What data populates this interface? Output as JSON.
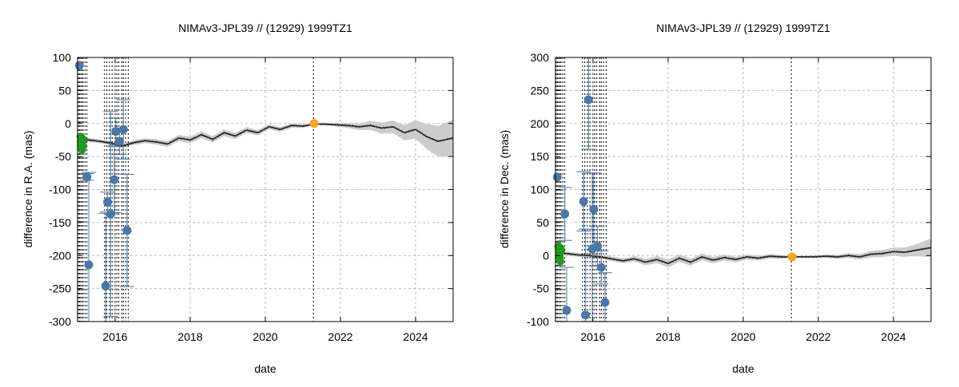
{
  "chart_data": [
    {
      "type": "scatter",
      "title": "NIMAv3-JPL39 // (12929) 1999TZ1",
      "xlabel": "date",
      "ylabel": "difference in R.A. (mas)",
      "xlim": [
        2015.0,
        2025.0
      ],
      "ylim": [
        -300,
        100
      ],
      "xticks": [
        2016,
        2018,
        2020,
        2022,
        2024
      ],
      "yticks": [
        -300,
        -250,
        -200,
        -150,
        -100,
        -50,
        0,
        50,
        100
      ],
      "grid": true,
      "colors": {
        "observations": "#4a78a8",
        "recent_obs": "#1f9a1f",
        "reference": "#f5a623",
        "model": "#222222",
        "uncertainty": "#cccccc"
      },
      "vertical_lines": [
        2015.02,
        2015.05,
        2015.08,
        2015.12,
        2015.15,
        2015.2,
        2015.25,
        2015.72,
        2015.78,
        2015.85,
        2015.92,
        2016.0,
        2016.05,
        2016.1,
        2016.18,
        2016.22,
        2016.28,
        2016.35,
        2021.28
      ],
      "model_line": {
        "x": [
          2015.0,
          2015.3,
          2015.6,
          2015.9,
          2016.2,
          2016.5,
          2016.8,
          2017.1,
          2017.4,
          2017.7,
          2018.0,
          2018.3,
          2018.6,
          2018.9,
          2019.2,
          2019.5,
          2019.8,
          2020.1,
          2020.4,
          2020.7,
          2021.0,
          2021.3,
          2021.6,
          2021.9,
          2022.2,
          2022.5,
          2022.8,
          2023.1,
          2023.4,
          2023.7,
          2024.0,
          2024.3,
          2024.6,
          2025.0
        ],
        "y": [
          -24,
          -25,
          -27,
          -30,
          -34,
          -29,
          -26,
          -28,
          -31,
          -22,
          -25,
          -17,
          -24,
          -14,
          -19,
          -10,
          -14,
          -5,
          -9,
          -3,
          -4,
          -1,
          -1,
          -2,
          -3,
          -5,
          -3,
          -7,
          -5,
          -14,
          -9,
          -20,
          -27,
          -22
        ]
      },
      "uncertainty_band": {
        "x": [
          2015.0,
          2016.0,
          2017.0,
          2018.0,
          2019.0,
          2020.0,
          2021.0,
          2021.3,
          2022.0,
          2022.5,
          2023.0,
          2023.5,
          2024.0,
          2024.5,
          2025.0
        ],
        "halfwidth": [
          3,
          3,
          4,
          5,
          5,
          4,
          3,
          1,
          3,
          5,
          8,
          10,
          14,
          22,
          28
        ]
      },
      "observations": [
        {
          "x": 2015.05,
          "y": 88,
          "err": 0
        },
        {
          "x": 2015.25,
          "y": -81,
          "err": 5
        },
        {
          "x": 2015.3,
          "y": -214,
          "err": 140
        },
        {
          "x": 2015.75,
          "y": -246,
          "err": 110
        },
        {
          "x": 2015.8,
          "y": -119,
          "err": 15
        },
        {
          "x": 2015.88,
          "y": -137,
          "err": 155
        },
        {
          "x": 2015.98,
          "y": -85,
          "err": 50
        },
        {
          "x": 2016.02,
          "y": -12,
          "err": 20
        },
        {
          "x": 2016.12,
          "y": -27,
          "err": 20
        },
        {
          "x": 2016.22,
          "y": -9,
          "err": 45
        },
        {
          "x": 2016.32,
          "y": -162,
          "err": 85
        }
      ],
      "recent_obs": {
        "x": [
          2015.08,
          2015.09,
          2015.1,
          2015.11,
          2015.12,
          2015.13,
          2015.14,
          2015.15
        ],
        "y": [
          -20,
          -26,
          -31,
          -36,
          -40,
          -23,
          -28,
          -34
        ]
      },
      "reference_point": {
        "x": 2021.3,
        "y": 0
      }
    },
    {
      "type": "scatter",
      "title": "NIMAv3-JPL39 // (12929) 1999TZ1",
      "xlabel": "date",
      "ylabel": "difference in Dec. (mas)",
      "xlim": [
        2015.0,
        2025.0
      ],
      "ylim": [
        -100,
        300
      ],
      "xticks": [
        2016,
        2018,
        2020,
        2022,
        2024
      ],
      "yticks": [
        -100,
        -50,
        0,
        50,
        100,
        150,
        200,
        250,
        300
      ],
      "grid": true,
      "colors": {
        "observations": "#4a78a8",
        "recent_obs": "#1f9a1f",
        "reference": "#f5a623",
        "model": "#222222",
        "uncertainty": "#cccccc"
      },
      "vertical_lines": [
        2015.02,
        2015.05,
        2015.08,
        2015.12,
        2015.15,
        2015.2,
        2015.25,
        2015.72,
        2015.78,
        2015.85,
        2015.92,
        2016.0,
        2016.05,
        2016.1,
        2016.18,
        2016.22,
        2016.28,
        2016.35,
        2021.28
      ],
      "model_line": {
        "x": [
          2015.0,
          2015.3,
          2015.6,
          2015.9,
          2016.2,
          2016.5,
          2016.8,
          2017.1,
          2017.4,
          2017.7,
          2018.0,
          2018.3,
          2018.6,
          2018.9,
          2019.2,
          2019.5,
          2019.8,
          2020.1,
          2020.4,
          2020.7,
          2021.0,
          2021.3,
          2021.6,
          2021.9,
          2022.2,
          2022.5,
          2022.8,
          2023.1,
          2023.4,
          2023.7,
          2024.0,
          2024.3,
          2024.6,
          2025.0
        ],
        "y": [
          5,
          3,
          1,
          0,
          -2,
          -5,
          -8,
          -5,
          -10,
          -6,
          -12,
          -4,
          -10,
          -2,
          -7,
          -3,
          -6,
          -2,
          -4,
          -1,
          -2,
          -2,
          -2,
          -2,
          -1,
          -2,
          0,
          -2,
          2,
          3,
          6,
          5,
          8,
          12
        ]
      },
      "uncertainty_band": {
        "x": [
          2015.0,
          2016.0,
          2017.0,
          2018.0,
          2019.0,
          2020.0,
          2021.0,
          2021.3,
          2022.0,
          2022.5,
          2023.0,
          2023.5,
          2024.0,
          2024.5,
          2025.0
        ],
        "halfwidth": [
          3,
          3,
          4,
          6,
          5,
          4,
          3,
          1,
          2,
          3,
          4,
          5,
          6,
          8,
          14
        ]
      },
      "observations": [
        {
          "x": 2015.05,
          "y": 119,
          "err": 0
        },
        {
          "x": 2015.25,
          "y": 63,
          "err": 40
        },
        {
          "x": 2015.3,
          "y": -83,
          "err": 65
        },
        {
          "x": 2015.75,
          "y": 82,
          "err": 45
        },
        {
          "x": 2015.8,
          "y": -90,
          "err": 130
        },
        {
          "x": 2015.88,
          "y": 236,
          "err": 75
        },
        {
          "x": 2015.98,
          "y": 10,
          "err": 115
        },
        {
          "x": 2016.02,
          "y": 70,
          "err": 55
        },
        {
          "x": 2016.12,
          "y": 14,
          "err": 30
        },
        {
          "x": 2016.22,
          "y": -18,
          "err": 25
        },
        {
          "x": 2016.32,
          "y": -71,
          "err": 45
        }
      ],
      "recent_obs": {
        "x": [
          2015.08,
          2015.09,
          2015.1,
          2015.11,
          2015.12,
          2015.13,
          2015.14,
          2015.15
        ],
        "y": [
          14,
          9,
          4,
          0,
          -5,
          -9,
          11,
          6
        ]
      },
      "reference_point": {
        "x": 2021.3,
        "y": -2
      }
    }
  ]
}
